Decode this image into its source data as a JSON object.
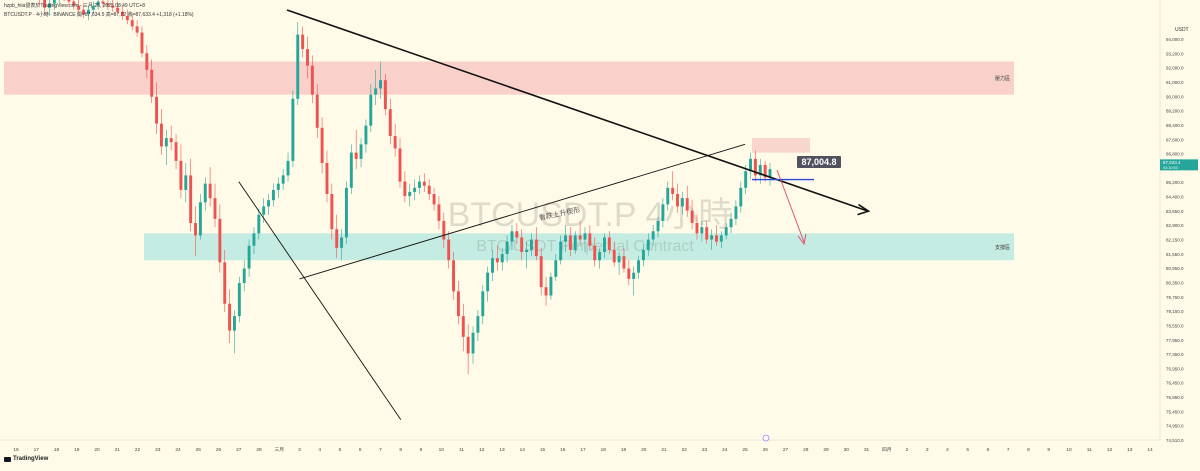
{
  "header": {
    "author_line": "hzpb_hiia發表於TradingView.com - 三月 25, 2025 08:49 UTC+8",
    "symbol_line": "BTCUSDT.P · 4小時 · BINANCE  開=87,634.5 高=87,72  收=87,633.4  +1,318  (+1.18%)"
  },
  "watermark": {
    "symbol": "BTCUSDT.P 4小時",
    "description": "BTC/USDT Perpetual Contract"
  },
  "annotations": {
    "resistance_label": "壓力區",
    "support_label": "支撐區",
    "wedge_label": "看跌上升楔形",
    "price_callout": "87,004.8"
  },
  "price_axis": {
    "currency": "USDT",
    "current_price_tag": "87,633.4",
    "current_price_sub": "03:10:53",
    "ticks": [
      "94,000.0",
      "93,200.0",
      "92,000.0",
      "91,000.0",
      "90,000.0",
      "89,200.0",
      "88,400.0",
      "87,600.0",
      "86,800.0",
      "86,000.0",
      "85,200.0",
      "84,400.0",
      "83,650.0",
      "82,900.0",
      "82,150.0",
      "81,550.0",
      "80,950.0",
      "80,350.0",
      "79,750.0",
      "79,150.0",
      "78,550.0",
      "77,950.0",
      "77,350.0",
      "76,950.0",
      "76,450.0",
      "75,950.0",
      "75,450.0",
      "74,950.0",
      "74,510.0"
    ]
  },
  "time_axis": {
    "ticks": [
      "16",
      "17",
      "18",
      "19",
      "20",
      "21",
      "22",
      "23",
      "24",
      "25",
      "26",
      "27",
      "28",
      "三月",
      "3",
      "4",
      "5",
      "6",
      "7",
      "8",
      "9",
      "10",
      "11",
      "12",
      "13",
      "14",
      "15",
      "16",
      "17",
      "18",
      "19",
      "20",
      "21",
      "22",
      "23",
      "24",
      "25",
      "26",
      "27",
      "28",
      "29",
      "30",
      "31",
      "四月",
      "2",
      "3",
      "4",
      "5",
      "6",
      "7",
      "8",
      "9",
      "10",
      "11",
      "12",
      "13",
      "14"
    ]
  },
  "footer": {
    "brand": "TradingView"
  },
  "colors": {
    "background": "#fffbe8",
    "up_candle": "#26a69a",
    "down_candle": "#ef5350",
    "resistance_zone": "#f7c6c2",
    "support_zone": "#b7e8e0",
    "trend_line": "#111111",
    "forecast_arrow": "#e0536a",
    "level_line": "#2b47d8"
  },
  "chart_data": {
    "type": "candlestick",
    "ylim": [
      74510,
      94800
    ],
    "resistance_zone": [
      91000,
      92600
    ],
    "support_zone": [
      83000,
      84300
    ],
    "candles": [
      [
        96500,
        96900,
        95800,
        96200
      ],
      [
        96200,
        96400,
        95600,
        95800
      ],
      [
        95800,
        96100,
        95300,
        95600
      ],
      [
        95600,
        95900,
        94900,
        95200
      ],
      [
        95200,
        95600,
        94800,
        95400
      ],
      [
        95400,
        95800,
        95100,
        95600
      ],
      [
        95600,
        96100,
        95400,
        95900
      ],
      [
        95900,
        96200,
        95500,
        95700
      ],
      [
        95700,
        96000,
        95300,
        95500
      ],
      [
        95500,
        95800,
        95100,
        95300
      ],
      [
        95300,
        95600,
        94900,
        95100
      ],
      [
        95100,
        95400,
        94700,
        94900
      ],
      [
        94900,
        95300,
        94600,
        95100
      ],
      [
        95100,
        95500,
        94900,
        95300
      ],
      [
        95300,
        95700,
        95100,
        95500
      ],
      [
        95500,
        95800,
        95200,
        95400
      ],
      [
        95400,
        95700,
        95100,
        95300
      ],
      [
        95300,
        95600,
        95000,
        95200
      ],
      [
        95200,
        95500,
        94900,
        95000
      ],
      [
        95000,
        95300,
        94600,
        94800
      ],
      [
        94800,
        95100,
        94400,
        94600
      ],
      [
        94600,
        94900,
        94100,
        94300
      ],
      [
        94300,
        94600,
        93800,
        94000
      ],
      [
        94000,
        94300,
        92800,
        93000
      ],
      [
        93000,
        93400,
        91800,
        92200
      ],
      [
        92200,
        92700,
        90600,
        90900
      ],
      [
        90900,
        91600,
        89100,
        89600
      ],
      [
        89600,
        90300,
        88100,
        88500
      ],
      [
        88500,
        89300,
        87600,
        88900
      ],
      [
        88900,
        89500,
        88300,
        88700
      ],
      [
        88700,
        89100,
        87400,
        87800
      ],
      [
        87800,
        88600,
        86000,
        86400
      ],
      [
        86400,
        87700,
        85800,
        87100
      ],
      [
        87100,
        87900,
        84400,
        84800
      ],
      [
        84800,
        85600,
        83200,
        84200
      ],
      [
        84200,
        86200,
        84000,
        85800
      ],
      [
        85800,
        87000,
        85400,
        86700
      ],
      [
        86700,
        87500,
        85600,
        86000
      ],
      [
        86000,
        86700,
        84600,
        85000
      ],
      [
        85000,
        85700,
        82400,
        82900
      ],
      [
        82900,
        83500,
        80500,
        80900
      ],
      [
        80900,
        81600,
        79000,
        79600
      ],
      [
        79600,
        80600,
        78500,
        80300
      ],
      [
        80300,
        82200,
        80000,
        81900
      ],
      [
        81900,
        83000,
        81500,
        82600
      ],
      [
        82600,
        84000,
        82200,
        83700
      ],
      [
        83700,
        84600,
        83300,
        84300
      ],
      [
        84300,
        85500,
        84000,
        85200
      ],
      [
        85200,
        86000,
        84800,
        85600
      ],
      [
        85600,
        86200,
        85200,
        85900
      ],
      [
        85900,
        86700,
        85600,
        86400
      ],
      [
        86400,
        87000,
        86000,
        86700
      ],
      [
        86700,
        87400,
        86400,
        87100
      ],
      [
        87100,
        88200,
        86800,
        87800
      ],
      [
        87800,
        91200,
        87500,
        90800
      ],
      [
        90800,
        94500,
        90500,
        93900
      ],
      [
        93900,
        94300,
        92800,
        93200
      ],
      [
        93200,
        93800,
        91800,
        92400
      ],
      [
        92400,
        92900,
        90600,
        91000
      ],
      [
        91000,
        91500,
        88900,
        89400
      ],
      [
        89400,
        89900,
        87200,
        87700
      ],
      [
        87700,
        88300,
        85800,
        86200
      ],
      [
        86200,
        86700,
        84000,
        84500
      ],
      [
        84500,
        85200,
        83100,
        83600
      ],
      [
        83600,
        84500,
        83000,
        84100
      ],
      [
        84100,
        86800,
        83800,
        86500
      ],
      [
        86500,
        88600,
        86200,
        88200
      ],
      [
        88200,
        89300,
        87400,
        87900
      ],
      [
        87900,
        88900,
        87500,
        88600
      ],
      [
        88600,
        89800,
        88200,
        89500
      ],
      [
        89500,
        91500,
        89200,
        91000
      ],
      [
        91000,
        92200,
        90500,
        91300
      ],
      [
        91300,
        92600,
        90800,
        91700
      ],
      [
        91700,
        92000,
        90000,
        90300
      ],
      [
        90300,
        90800,
        88600,
        89000
      ],
      [
        89000,
        89600,
        88000,
        88400
      ],
      [
        88400,
        88900,
        86500,
        86800
      ],
      [
        86800,
        87300,
        85800,
        86100
      ],
      [
        86100,
        86700,
        85600,
        86300
      ],
      [
        86300,
        86900,
        85900,
        86500
      ],
      [
        86500,
        87100,
        86200,
        86800
      ],
      [
        86800,
        87200,
        86300,
        86600
      ],
      [
        86600,
        86900,
        85900,
        86200
      ],
      [
        86200,
        86500,
        85400,
        85700
      ],
      [
        85700,
        86100,
        84500,
        84900
      ],
      [
        84900,
        85300,
        83600,
        84000
      ],
      [
        84000,
        84400,
        82600,
        83000
      ],
      [
        83000,
        83400,
        81100,
        81500
      ],
      [
        81500,
        82000,
        79900,
        80300
      ],
      [
        80300,
        80900,
        78600,
        79300
      ],
      [
        79300,
        79900,
        77500,
        78500
      ],
      [
        78500,
        79800,
        78000,
        79500
      ],
      [
        79500,
        80600,
        79100,
        80300
      ],
      [
        80300,
        81800,
        79900,
        81500
      ],
      [
        81500,
        82700,
        81000,
        82400
      ],
      [
        82400,
        83500,
        82000,
        83100
      ],
      [
        83100,
        83700,
        82500,
        82900
      ],
      [
        82900,
        83600,
        82500,
        83300
      ],
      [
        83300,
        84200,
        82900,
        83900
      ],
      [
        83900,
        84700,
        83500,
        84400
      ],
      [
        84400,
        84800,
        83800,
        84100
      ],
      [
        84100,
        84500,
        83000,
        83400
      ],
      [
        83400,
        83900,
        82600,
        83500
      ],
      [
        83500,
        84300,
        83200,
        84000
      ],
      [
        84000,
        84600,
        83000,
        83200
      ],
      [
        83200,
        83600,
        81300,
        81700
      ],
      [
        81700,
        82200,
        80800,
        81300
      ],
      [
        81300,
        82400,
        81100,
        82200
      ],
      [
        82200,
        83300,
        82000,
        83000
      ],
      [
        83000,
        84200,
        82800,
        83900
      ],
      [
        83900,
        84700,
        83400,
        84200
      ],
      [
        84200,
        84600,
        83200,
        83500
      ],
      [
        83500,
        84400,
        83300,
        84200
      ],
      [
        84200,
        84900,
        83700,
        84000
      ],
      [
        84000,
        84600,
        83400,
        84300
      ],
      [
        84300,
        84700,
        83500,
        83700
      ],
      [
        83700,
        84100,
        82700,
        83000
      ],
      [
        83000,
        83600,
        82600,
        83400
      ],
      [
        83400,
        84300,
        83100,
        84100
      ],
      [
        84100,
        84400,
        83300,
        83500
      ],
      [
        83500,
        83900,
        82700,
        82900
      ],
      [
        82900,
        83400,
        82300,
        83200
      ],
      [
        83200,
        83600,
        82400,
        82600
      ],
      [
        82600,
        83000,
        81800,
        82100
      ],
      [
        82100,
        82700,
        81300,
        82400
      ],
      [
        82400,
        83200,
        82100,
        83000
      ],
      [
        83000,
        83800,
        82700,
        83500
      ],
      [
        83500,
        84300,
        83200,
        84000
      ],
      [
        84000,
        84700,
        83700,
        84400
      ],
      [
        84400,
        85100,
        84100,
        84900
      ],
      [
        84900,
        86000,
        84600,
        85700
      ],
      [
        85700,
        86800,
        85400,
        86500
      ],
      [
        86500,
        87300,
        85900,
        86200
      ],
      [
        86200,
        86700,
        85300,
        85600
      ],
      [
        85600,
        86300,
        85200,
        86000
      ],
      [
        86000,
        86600,
        85100,
        85400
      ],
      [
        85400,
        85900,
        84500,
        84800
      ],
      [
        84800,
        85200,
        84000,
        84300
      ],
      [
        84300,
        84900,
        83900,
        84600
      ],
      [
        84600,
        84900,
        83800,
        84000
      ],
      [
        84000,
        84500,
        83500,
        84200
      ],
      [
        84200,
        84700,
        83700,
        83900
      ],
      [
        83900,
        84400,
        83600,
        84200
      ],
      [
        84200,
        84800,
        84000,
        84600
      ],
      [
        84600,
        85300,
        84300,
        85000
      ],
      [
        85000,
        85900,
        84700,
        85600
      ],
      [
        85600,
        86800,
        85300,
        86500
      ],
      [
        86500,
        87600,
        86200,
        87300
      ],
      [
        87300,
        88200,
        86900,
        87900
      ],
      [
        87900,
        88300,
        86800,
        87100
      ],
      [
        87100,
        87900,
        86700,
        87600
      ],
      [
        87600,
        87800,
        86800,
        87000
      ],
      [
        87000,
        87700,
        86600,
        87400
      ]
    ],
    "wedge_upper_line": {
      "from": [
        "3",
        82100
      ],
      "to": [
        "25",
        88600
      ]
    },
    "wedge_lower_line": {
      "from": [
        "8",
        75300
      ],
      "to": [
        "27",
        86800
      ]
    },
    "descending_line": {
      "from": [
        "3",
        94400
      ],
      "to": [
        "31",
        85400
      ]
    },
    "level_line": 86900
  }
}
